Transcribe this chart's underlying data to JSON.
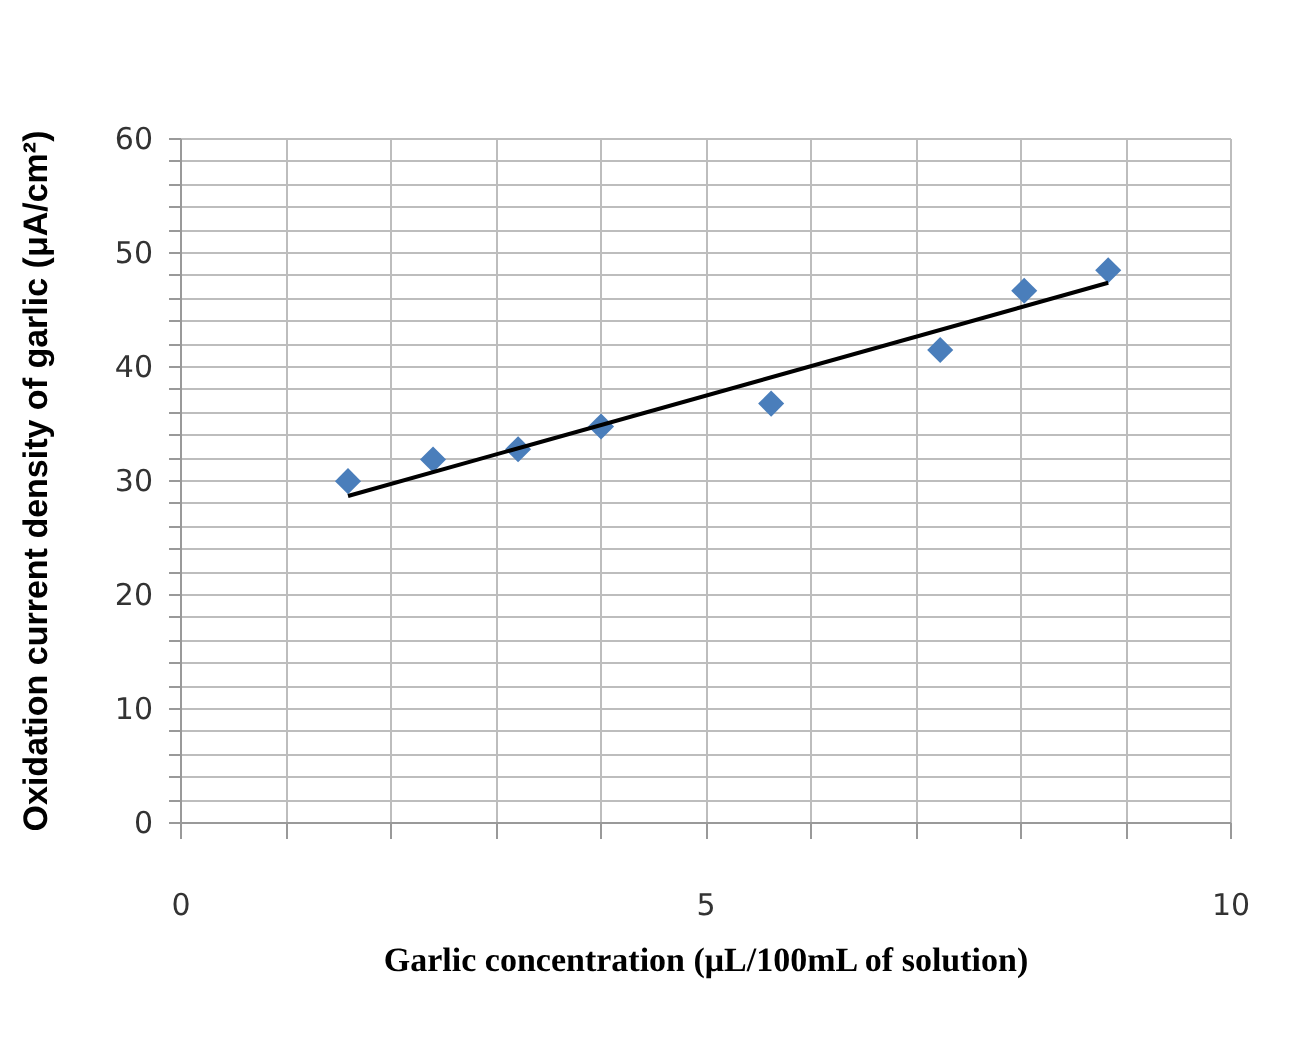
{
  "chart_data": {
    "type": "scatter",
    "xlabel": "Garlic   concentration   (μL/100mL of solution)",
    "ylabel": "Oxidation current density of garlic  (μA/cm²)",
    "xlim": [
      0,
      10
    ],
    "ylim": [
      0,
      60
    ],
    "xticks": [
      0,
      {
        "value": 1,
        "label": null
      },
      {
        "value": 2,
        "label": null
      },
      {
        "value": 3,
        "label": null
      },
      {
        "value": 4,
        "label": null
      },
      5,
      {
        "value": 6,
        "label": null
      },
      {
        "value": 7,
        "label": null
      },
      {
        "value": 8,
        "label": null
      },
      {
        "value": 9,
        "label": null
      },
      10
    ],
    "yticks": [
      0,
      {
        "value": 2,
        "label": null
      },
      {
        "value": 4,
        "label": null
      },
      {
        "value": 6,
        "label": null
      },
      {
        "value": 8,
        "label": null
      },
      10,
      {
        "value": 12,
        "label": null
      },
      {
        "value": 14,
        "label": null
      },
      {
        "value": 16,
        "label": null
      },
      {
        "value": 18,
        "label": null
      },
      20,
      {
        "value": 22,
        "label": null
      },
      {
        "value": 24,
        "label": null
      },
      {
        "value": 26,
        "label": null
      },
      {
        "value": 28,
        "label": null
      },
      30,
      {
        "value": 32,
        "label": null
      },
      {
        "value": 34,
        "label": null
      },
      {
        "value": 36,
        "label": null
      },
      {
        "value": 38,
        "label": null
      },
      40,
      {
        "value": 42,
        "label": null
      },
      {
        "value": 44,
        "label": null
      },
      {
        "value": 46,
        "label": null
      },
      {
        "value": 48,
        "label": null
      },
      50,
      {
        "value": 52,
        "label": null
      },
      {
        "value": 54,
        "label": null
      },
      {
        "value": 56,
        "label": null
      },
      {
        "value": 58,
        "label": null
      },
      60
    ],
    "grid": true,
    "series": [
      {
        "type": "scatter",
        "marker": "diamond",
        "color": "#4a7ebb",
        "x": [
          1.6,
          2.41,
          3.22,
          4.01,
          5.63,
          7.24,
          8.04,
          8.84
        ],
        "values": [
          29.9,
          31.8,
          32.7,
          34.7,
          36.7,
          41.4,
          46.6,
          48.4
        ]
      },
      {
        "type": "line",
        "color": "#000000",
        "x": [
          1.6,
          8.84
        ],
        "values": [
          28.6,
          47.3
        ]
      }
    ]
  }
}
